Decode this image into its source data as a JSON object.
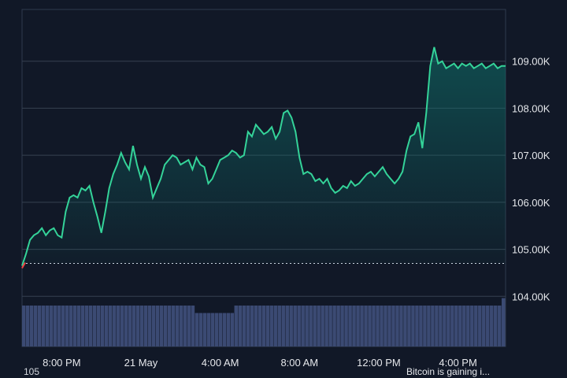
{
  "chart_data": {
    "type": "area",
    "title": "",
    "xlabel": "",
    "ylabel": "",
    "x_tick_labels": [
      "8:00 PM",
      "21 May",
      "4:00 AM",
      "8:00 AM",
      "12:00 PM",
      "4:00 PM"
    ],
    "y_ticks": [
      104000,
      105000,
      106000,
      107000,
      108000,
      109000
    ],
    "y_tick_labels": [
      "104.00K",
      "105.00K",
      "106.00K",
      "107.00K",
      "108.00K",
      "109.00K"
    ],
    "ylim": [
      103000,
      110000
    ],
    "x_range_hours": [
      0,
      24.4
    ],
    "x_tick_hours": [
      2,
      6,
      10,
      14,
      18,
      22
    ],
    "reference_price": 104700,
    "series": [
      {
        "x": [
          0,
          0.2,
          0.4,
          0.6,
          0.8,
          1.0,
          1.2,
          1.4,
          1.6,
          1.8,
          2.0,
          2.2,
          2.4,
          2.6,
          2.8,
          3.0,
          3.2,
          3.4,
          3.6,
          3.8,
          4.0,
          4.2,
          4.4,
          4.6,
          4.8,
          5.0,
          5.2,
          5.4,
          5.6,
          5.8,
          6.0,
          6.2,
          6.4,
          6.6,
          6.8,
          7.0,
          7.2,
          7.4,
          7.6,
          7.8,
          8.0,
          8.2,
          8.4,
          8.6,
          8.8,
          9.0,
          9.2,
          9.4,
          9.6,
          9.8,
          10.0,
          10.2,
          10.4,
          10.6,
          10.8,
          11.0,
          11.2,
          11.4,
          11.6,
          11.8,
          12.0,
          12.2,
          12.4,
          12.6,
          12.8,
          13.0,
          13.2,
          13.4,
          13.6,
          13.8,
          14.0,
          14.2,
          14.4,
          14.6,
          14.8,
          15.0,
          15.2,
          15.4,
          15.6,
          15.8,
          16.0,
          16.2,
          16.4,
          16.6,
          16.8,
          17.0,
          17.2,
          17.4,
          17.6,
          17.8,
          18.0,
          18.2,
          18.4,
          18.6,
          18.8,
          19.0,
          19.2,
          19.4,
          19.6,
          19.8,
          20.0,
          20.2,
          20.4,
          20.6,
          20.8,
          21.0,
          21.2,
          21.4,
          21.6,
          21.8,
          22.0,
          22.2,
          22.4,
          22.6,
          22.8,
          23.0,
          23.2,
          23.4,
          23.6,
          23.8,
          24.0,
          24.2,
          24.4
        ],
        "y": [
          104650,
          104900,
          105200,
          105300,
          105350,
          105450,
          105300,
          105400,
          105450,
          105300,
          105250,
          105800,
          106100,
          106150,
          106100,
          106300,
          106250,
          106350,
          106000,
          105700,
          105350,
          105800,
          106300,
          106600,
          106800,
          107050,
          106850,
          106700,
          107200,
          106800,
          106500,
          106750,
          106550,
          106100,
          106300,
          106500,
          106800,
          106900,
          107000,
          106950,
          106800,
          106850,
          106900,
          106700,
          106950,
          106800,
          106750,
          106400,
          106500,
          106700,
          106900,
          106950,
          107000,
          107100,
          107050,
          106950,
          107000,
          107500,
          107400,
          107650,
          107550,
          107450,
          107500,
          107600,
          107350,
          107500,
          107900,
          107950,
          107800,
          107500,
          106950,
          106600,
          106650,
          106600,
          106450,
          106500,
          106400,
          106500,
          106300,
          106200,
          106250,
          106350,
          106300,
          106450,
          106350,
          106400,
          106500,
          106600,
          106650,
          106550,
          106650,
          106750,
          106600,
          106500,
          106400,
          106500,
          106650,
          107100,
          107400,
          107450,
          107700,
          107150,
          107900,
          108900,
          109300,
          108950,
          109000,
          108850,
          108900,
          108950,
          108850,
          108950,
          108900,
          108950,
          108850,
          108900,
          108950,
          108850,
          108900,
          108950,
          108850,
          108900,
          108900
        ]
      }
    ],
    "volume": [
      22,
      22,
      22,
      22,
      22,
      22,
      22,
      22,
      22,
      22,
      22,
      22,
      22,
      22,
      22,
      22,
      22,
      22,
      22,
      22,
      22,
      22,
      22,
      22,
      22,
      22,
      22,
      22,
      22,
      22,
      22,
      22,
      22,
      22,
      22,
      22,
      22,
      22,
      22,
      22,
      22,
      22,
      22,
      22,
      22,
      22,
      22,
      22,
      22,
      22,
      22,
      22,
      22,
      22,
      22,
      22,
      22,
      22,
      22,
      22,
      22,
      22,
      22,
      22,
      22,
      22,
      22,
      22,
      22,
      22,
      22,
      22,
      22,
      22,
      22,
      22,
      22,
      22,
      22,
      22,
      22,
      22,
      22,
      22,
      22,
      22,
      22,
      22,
      22,
      22,
      22,
      22,
      22,
      22,
      22,
      22,
      22,
      22,
      22,
      22,
      22,
      22,
      22,
      22,
      22,
      22,
      22,
      22,
      22,
      22,
      22,
      22,
      22,
      22,
      22,
      22,
      22,
      22,
      22,
      22,
      22,
      22,
      22
    ],
    "colors": {
      "background": "#111827",
      "grid": "#374151",
      "line": "#34d399",
      "area_top": "#0f766e",
      "volume": "#3b4a73",
      "reference": "#cbd5e1",
      "negative": "#ef4444"
    },
    "grid": true,
    "legend": "none"
  },
  "footer": {
    "left_text": "105",
    "right_text": "Bitcoin is gaining i..."
  }
}
